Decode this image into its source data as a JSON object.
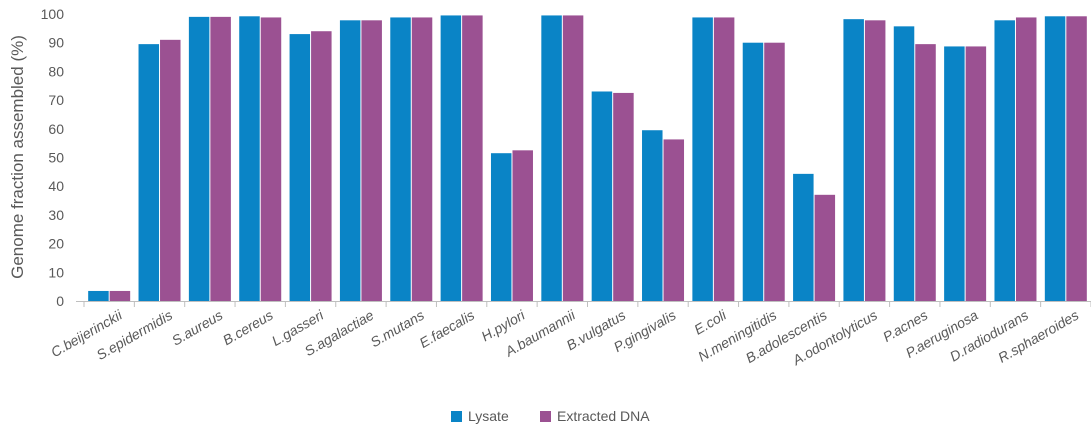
{
  "chart_data": {
    "type": "bar",
    "title": "",
    "xlabel": "",
    "ylabel": "Genome fraction assembled (%)",
    "ylim": [
      0,
      100
    ],
    "yticks": [
      0,
      10,
      20,
      30,
      40,
      50,
      60,
      70,
      80,
      90,
      100
    ],
    "grid": false,
    "legend_position": "bottom",
    "categories": [
      "C.beijerinckii",
      "S.epidermidis",
      "S.aureus",
      "B.cereus",
      "L.gasseri",
      "S.agalactiae",
      "S.mutans",
      "E.faecalis",
      "H.pylori",
      "A.baumannii",
      "B.vulgatus",
      "P.gingivalis",
      "E.coli",
      "N.meningitidis",
      "B.adolescentis",
      "A.odontolyticus",
      "P.acnes",
      "P.aeruginosa",
      "D.radiodurans",
      "R.sphaeroides"
    ],
    "series": [
      {
        "name": "Lysate",
        "color": "#0a84c6",
        "values": [
          3.5,
          89.5,
          99,
          99.2,
          93,
          97.8,
          98.8,
          99.5,
          51.5,
          99.5,
          73,
          59.5,
          98.8,
          90,
          44.3,
          98.2,
          95.7,
          88.7,
          97.8,
          99.2
        ]
      },
      {
        "name": "Extracted DNA",
        "color": "#9b5192",
        "values": [
          3.5,
          91,
          99,
          98.8,
          94,
          97.8,
          98.8,
          99.5,
          52.5,
          99.5,
          72.5,
          56.3,
          98.8,
          90,
          37,
          97.8,
          89.5,
          88.7,
          98.8,
          99.2
        ]
      }
    ]
  }
}
